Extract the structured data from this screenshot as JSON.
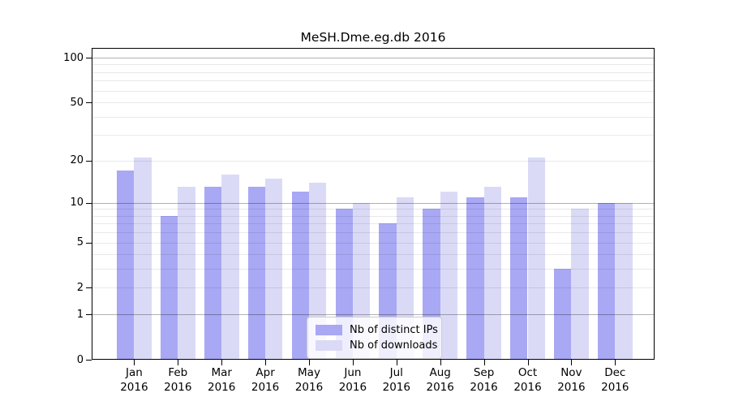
{
  "chart_data": {
    "type": "bar",
    "title": "MeSH.Dme.eg.db 2016",
    "year": "2016",
    "categories": [
      "Jan",
      "Feb",
      "Mar",
      "Apr",
      "May",
      "Jun",
      "Jul",
      "Aug",
      "Sep",
      "Oct",
      "Nov",
      "Dec"
    ],
    "series": [
      {
        "name": "Nb of distinct IPs",
        "color": "#a8a8f4",
        "values": [
          17,
          8,
          13,
          13,
          12,
          9,
          7,
          9,
          11,
          11,
          3,
          10
        ]
      },
      {
        "name": "Nb of downloads",
        "color": "#dadaf7",
        "values": [
          21,
          13,
          16,
          15,
          14,
          10,
          11,
          12,
          13,
          21,
          9,
          10
        ]
      }
    ],
    "yscale": "log1p",
    "ylim": [
      0,
      118
    ],
    "yticks": [
      0,
      1,
      2,
      5,
      10,
      20,
      50,
      100
    ],
    "major_gridlines": [
      1,
      10,
      100
    ],
    "minor_gridlines": [
      2,
      3,
      4,
      5,
      6,
      7,
      8,
      9,
      20,
      30,
      40,
      50,
      60,
      70,
      80,
      90
    ],
    "grid": {
      "major_color": "#b3b3b3",
      "minor_color": "#e9e9e9"
    },
    "legend_position": "bottom-center",
    "xlabel": "",
    "ylabel": ""
  }
}
